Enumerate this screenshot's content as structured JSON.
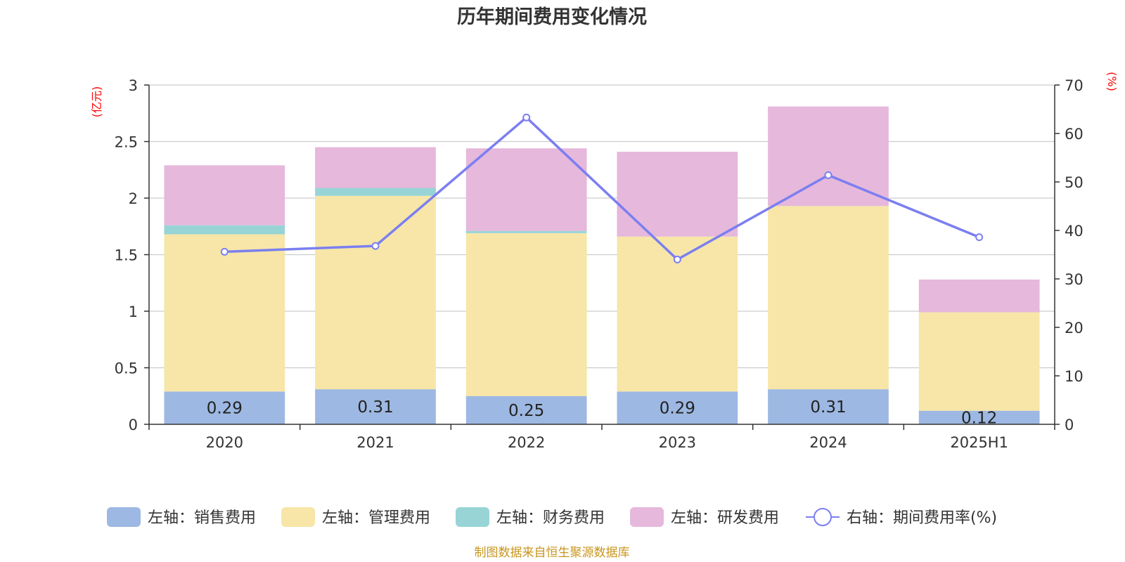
{
  "chart_data": {
    "type": "bar",
    "title": "历年期间费用变化情况",
    "categories": [
      "2020",
      "2021",
      "2022",
      "2023",
      "2024",
      "2025H1"
    ],
    "left_axis": {
      "unit": "(亿元)",
      "ylim": [
        0,
        3
      ],
      "ticks": [
        "0",
        "0.5",
        "1",
        "1.5",
        "2",
        "2.5",
        "3"
      ]
    },
    "right_axis": {
      "unit": "(%)",
      "ylim": [
        0,
        70
      ],
      "ticks": [
        "0",
        "10",
        "20",
        "30",
        "40",
        "50",
        "60",
        "70"
      ]
    },
    "series": [
      {
        "name": "左轴：销售费用",
        "type": "bar",
        "stack": true,
        "color": "#9db8e2",
        "values": [
          0.29,
          0.31,
          0.25,
          0.29,
          0.31,
          0.12
        ],
        "labels": [
          "0.29",
          "0.31",
          "0.25",
          "0.29",
          "0.31",
          "0.12"
        ]
      },
      {
        "name": "左轴：管理费用",
        "type": "bar",
        "stack": true,
        "color": "#f7e6a8",
        "values": [
          1.39,
          1.71,
          1.44,
          1.37,
          1.62,
          0.87
        ]
      },
      {
        "name": "左轴：财务费用",
        "type": "bar",
        "stack": true,
        "color": "#98d4d6",
        "values": [
          0.08,
          0.07,
          0.02,
          0.0,
          0.0,
          0.0
        ]
      },
      {
        "name": "左轴：研发费用",
        "type": "bar",
        "stack": true,
        "color": "#e6b8db",
        "values": [
          0.53,
          0.36,
          0.73,
          0.75,
          0.88,
          0.29
        ]
      },
      {
        "name": "右轴：期间费用率(%)",
        "type": "line",
        "axis": "right",
        "color": "#7b7ff0",
        "values": [
          35.6,
          36.8,
          63.3,
          34.0,
          51.4,
          38.6
        ]
      }
    ],
    "legend_position": "bottom",
    "grid": true,
    "source": "制图数据来自恒生聚源数据库"
  }
}
